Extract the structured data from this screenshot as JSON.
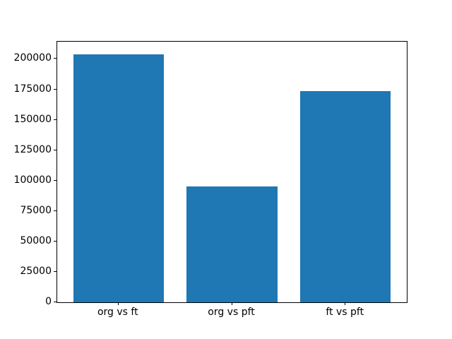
{
  "chart_data": {
    "type": "bar",
    "categories": [
      "org vs ft",
      "org vs pft",
      "ft vs pft"
    ],
    "values": [
      204000,
      95000,
      173500
    ],
    "title": "",
    "xlabel": "",
    "ylabel": "",
    "ylim": [
      0,
      214200
    ],
    "yticks": [
      0,
      25000,
      50000,
      75000,
      100000,
      125000,
      150000,
      175000,
      200000
    ],
    "bar_color": "#1f77b4",
    "axis_color": "#000000",
    "background_color": "#ffffff",
    "grid": false,
    "legend": null
  }
}
